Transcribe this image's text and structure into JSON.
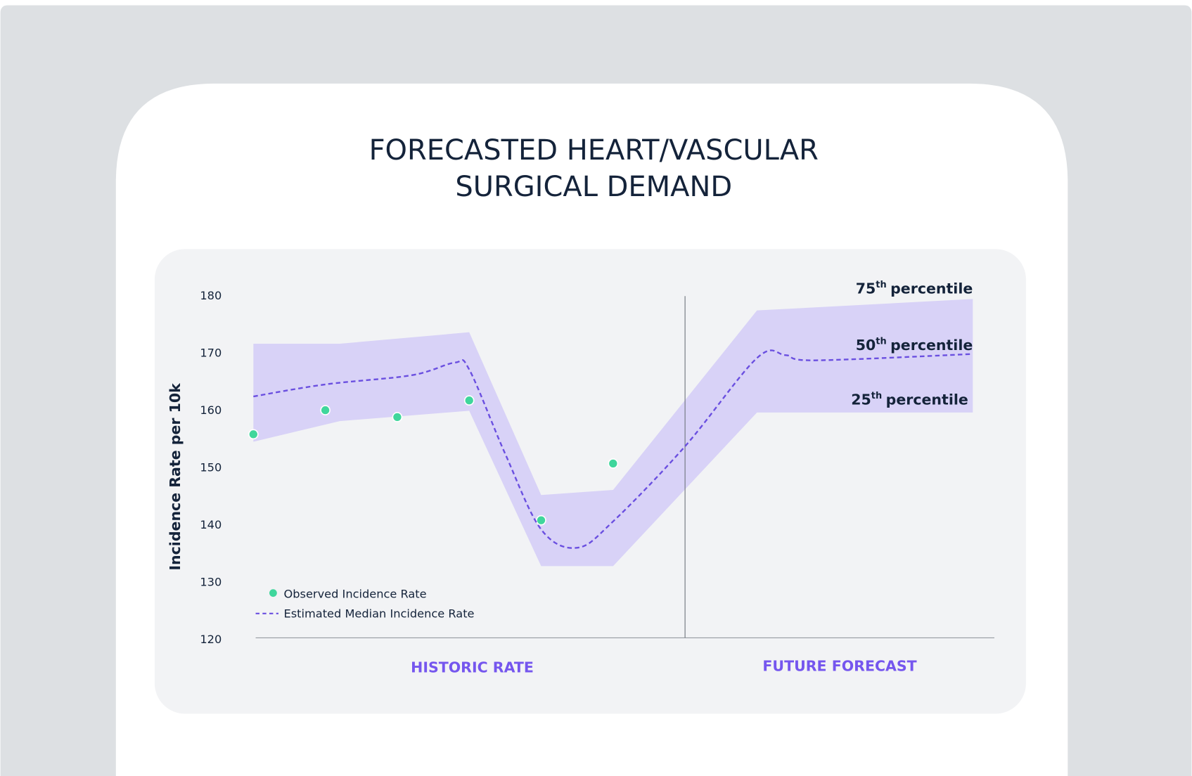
{
  "chart_data": {
    "type": "line",
    "title": [
      "FORECASTED HEART/VASCULAR",
      "SURGICAL DEMAND"
    ],
    "ylabel": "Incidence Rate per 10k",
    "ylim": [
      120,
      180
    ],
    "yticks": [
      120,
      130,
      140,
      150,
      160,
      170,
      180
    ],
    "xlim": [
      0,
      10.3
    ],
    "forecast_start": 6,
    "sections": [
      "HISTORIC RATE",
      "FUTURE FORECAST"
    ],
    "band": {
      "color": "#d8d2f7",
      "x": [
        0,
        1.2,
        3,
        4,
        5,
        7,
        10
      ],
      "upper": [
        171.7,
        171.7,
        173.7,
        145.3,
        146.2,
        177.5,
        179.5
      ],
      "lower": [
        154.6,
        158.2,
        160,
        132.9,
        132.9,
        159.7,
        159.7
      ]
    },
    "series": [
      {
        "name": "Observed Incidence Rate",
        "type": "scatter",
        "color": "#3fd69c",
        "x": [
          0,
          1,
          2,
          3,
          4,
          5
        ],
        "values": [
          155.9,
          160.1,
          158.9,
          161.8,
          140.9,
          150.8
        ]
      },
      {
        "name": "Estimated Median Incidence Rate",
        "type": "line",
        "color": "#6a4fe0",
        "x": [
          0,
          1,
          2.2,
          2.8,
          3,
          3.5,
          4,
          4.5,
          5,
          6,
          7,
          7.4,
          7.8,
          10
        ],
        "values": [
          162.5,
          164.6,
          166.2,
          168.4,
          167.2,
          152.5,
          139.3,
          136.1,
          140.7,
          153.8,
          169.2,
          169.7,
          168.8,
          169.9
        ]
      }
    ],
    "percentile_labels": [
      {
        "base": "75",
        "sup": "th",
        "rest": "percentile"
      },
      {
        "base": "50",
        "sup": "th",
        "rest": "percentile"
      },
      {
        "base": "25",
        "sup": "th",
        "rest": "percentile"
      }
    ]
  }
}
